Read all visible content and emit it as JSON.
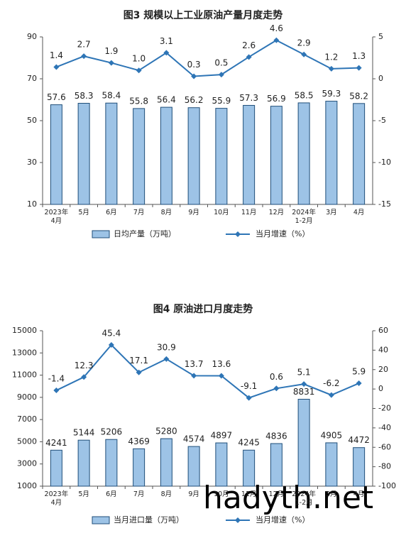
{
  "chart_data": [
    {
      "type": "bar",
      "title": "图3  规模以上工业原油产量月度走势",
      "categories": [
        "2023年\n4月",
        "5月",
        "6月",
        "7月",
        "8月",
        "9月",
        "10月",
        "11月",
        "12月",
        "2024年\n1-2月",
        "3月",
        "4月"
      ],
      "series": [
        {
          "name": "日均产量（万吨）",
          "color": "#9dc3e6",
          "values": [
            57.6,
            58.3,
            58.4,
            55.8,
            56.4,
            56.2,
            55.9,
            57.3,
            56.9,
            58.5,
            59.3,
            58.2
          ]
        },
        {
          "name": "当月增速（%）",
          "type": "line",
          "axis": "y2",
          "color": "#2e75b6",
          "values": [
            1.4,
            2.7,
            1.9,
            1.0,
            3.1,
            0.3,
            0.5,
            2.6,
            4.6,
            2.9,
            1.2,
            1.3
          ],
          "value_labels": [
            "1.4",
            "2.7",
            "1.9",
            "1.0",
            "3.1",
            "0.3",
            "0.5",
            "2.6",
            "4.6",
            "2.9",
            "1.2",
            "1.3"
          ]
        }
      ],
      "ylim": [
        10,
        90
      ],
      "yticks": [
        10,
        30,
        50,
        70,
        90
      ],
      "y2lim": [
        -15,
        5
      ],
      "y2ticks": [
        -15,
        -10,
        -5,
        0,
        5
      ],
      "grid": false
    },
    {
      "type": "bar",
      "title": "图4  原油进口月度走势",
      "categories": [
        "2023年\n4月",
        "5月",
        "6月",
        "7月",
        "8月",
        "9月",
        "10月",
        "11月",
        "12月",
        "2024年\n1-2月",
        "3月",
        "4月"
      ],
      "series": [
        {
          "name": "当月进口量（万吨）",
          "color": "#9dc3e6",
          "values": [
            4241,
            5144,
            5206,
            4369,
            5280,
            4574,
            4897,
            4245,
            4836,
            8831,
            4905,
            4472
          ]
        },
        {
          "name": "当月增速（%）",
          "type": "line",
          "axis": "y2",
          "color": "#2e75b6",
          "values": [
            -1.4,
            12.3,
            45.4,
            17.1,
            30.9,
            13.7,
            13.6,
            -9.1,
            0.6,
            5.1,
            -6.2,
            5.9
          ]
        }
      ],
      "ylim": [
        1000,
        15000
      ],
      "yticks": [
        1000,
        3000,
        5000,
        7000,
        9000,
        11000,
        13000,
        15000
      ],
      "y2lim": [
        -100,
        60
      ],
      "y2ticks": [
        -100,
        -80,
        -60,
        -40,
        -20,
        0,
        20,
        40,
        60
      ],
      "grid": false
    }
  ],
  "watermark": "hadyth.net"
}
